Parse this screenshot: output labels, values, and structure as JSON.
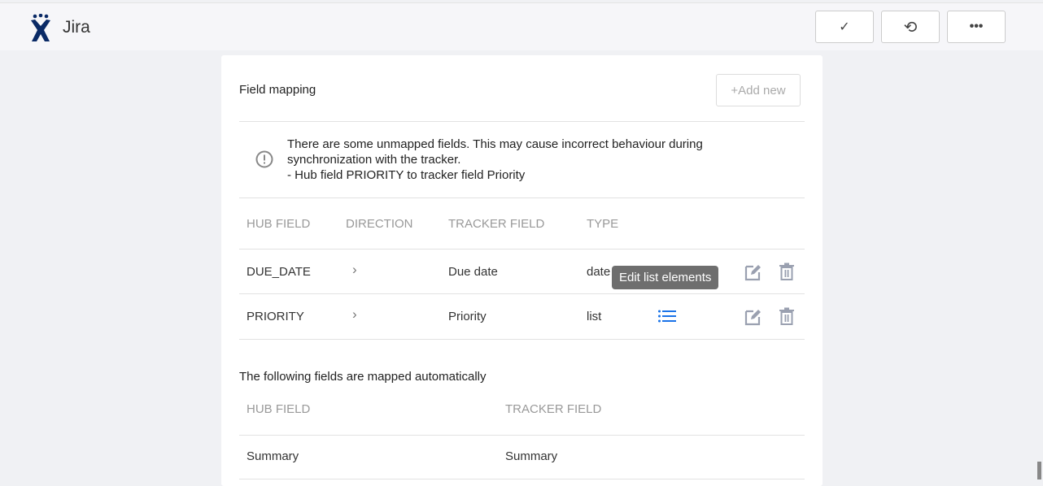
{
  "app": {
    "title": "Jira"
  },
  "toolbar": {
    "confirm_icon": "check-icon",
    "reset_icon": "undo-icon",
    "more_icon": "more-icon"
  },
  "card": {
    "title": "Field mapping",
    "add_label": "+Add new",
    "warning": {
      "line1": "There are some unmapped fields. This may cause incorrect behaviour during",
      "line2": "synchronization with the tracker.",
      "line3": "- Hub field PRIORITY to tracker field Priority"
    },
    "headers": [
      "HUB FIELD",
      "DIRECTION",
      "TRACKER FIELD",
      "TYPE"
    ],
    "rows": [
      {
        "hub": "DUE_DATE",
        "tracker": "Due date",
        "type": "date"
      },
      {
        "hub": "PRIORITY",
        "tracker": "Priority",
        "type": "list"
      }
    ],
    "tooltip": "Edit list elements",
    "auto": {
      "title": "The following fields are mapped automatically",
      "headers": [
        "HUB FIELD",
        "TRACKER FIELD"
      ],
      "rows": [
        {
          "hub": "Summary",
          "tracker": "Summary"
        }
      ]
    },
    "accent": "#1a73e8"
  }
}
